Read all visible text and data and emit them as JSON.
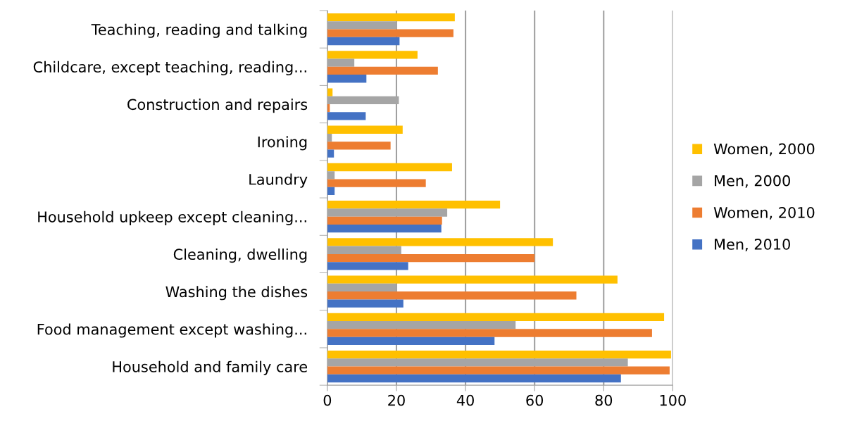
{
  "chart_data": {
    "type": "bar",
    "orientation": "horizontal",
    "categories": [
      "Teaching, reading and talking",
      "Childcare, except teaching, reading...",
      "Construction and repairs",
      "Ironing",
      "Laundry",
      "Household upkeep except cleaning...",
      "Cleaning, dwelling",
      "Washing the dishes",
      "Food management except washing...",
      "Household and family care"
    ],
    "series": [
      {
        "name": "Women, 2000",
        "color": "#ffc000",
        "values": [
          36.9,
          26.1,
          1.5,
          21.8,
          36.1,
          50.0,
          65.3,
          84.0,
          97.5,
          99.5
        ]
      },
      {
        "name": "Men, 2000",
        "color": "#a5a5a5",
        "values": [
          20.1,
          7.8,
          20.7,
          1.3,
          2.1,
          34.7,
          21.4,
          19.8,
          54.5,
          87.0
        ]
      },
      {
        "name": "Women, 2010",
        "color": "#ed7d31",
        "values": [
          36.5,
          32.0,
          0.7,
          18.3,
          28.5,
          33.2,
          60.0,
          72.1,
          94.0,
          99.1
        ]
      },
      {
        "name": "Men, 2010",
        "color": "#4472c4",
        "values": [
          20.9,
          11.3,
          11.1,
          1.9,
          2.1,
          33.0,
          23.4,
          22.0,
          48.4,
          85.0
        ]
      }
    ],
    "xlim": [
      0,
      100
    ],
    "xticks": [
      0,
      20,
      40,
      60,
      80,
      100
    ],
    "grid": "x",
    "legend": "right"
  }
}
